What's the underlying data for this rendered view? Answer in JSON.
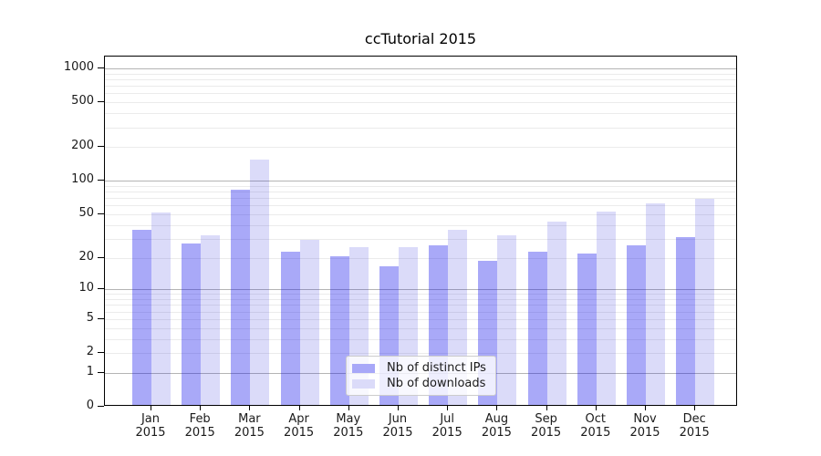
{
  "title": "ccTutorial 2015",
  "colors": {
    "ips_bar_fill": "rgba(8,8,235,0.35)",
    "downloads_bar_fill": "rgba(15,15,215,0.15)",
    "ips_swatch": "#a8a8f8",
    "downloads_swatch": "#dbdbf9",
    "grid_major": "#b4b4b4",
    "grid_minor": "#ebebeb",
    "axis": "#000000",
    "text": "#1a1a1a",
    "legend_border": "#cccccc"
  },
  "legend": {
    "items": [
      {
        "label": "Nb of distinct IPs",
        "swatch": "ips_swatch"
      },
      {
        "label": "Nb of downloads",
        "swatch": "downloads_swatch"
      }
    ],
    "position": "lower center"
  },
  "chart_data": {
    "type": "bar",
    "title": "ccTutorial 2015",
    "categories": [
      "Jan",
      "Feb",
      "Mar",
      "Apr",
      "May",
      "Jun",
      "Jul",
      "Aug",
      "Sep",
      "Oct",
      "Nov",
      "Dec"
    ],
    "year_label": "2015",
    "series": [
      {
        "name": "Nb of distinct IPs",
        "values": [
          35,
          26,
          80,
          22,
          20,
          16,
          25,
          18,
          22,
          21,
          25,
          30
        ]
      },
      {
        "name": "Nb of downloads",
        "values": [
          50,
          31,
          150,
          28,
          24,
          24,
          35,
          31,
          41,
          51,
          60,
          66
        ]
      }
    ],
    "xlabel": "",
    "ylabel": "",
    "y_scale": "log10(1+v) symlog-like, includes 0",
    "ylim": [
      0,
      1273
    ],
    "y_ticks": [
      0,
      1,
      2,
      5,
      10,
      20,
      50,
      100,
      200,
      500,
      1000
    ],
    "y_major_gridlines": [
      1,
      10,
      100,
      1000
    ],
    "y_minor_gridlines": [
      2,
      3,
      4,
      5,
      6,
      7,
      8,
      9,
      20,
      30,
      40,
      50,
      60,
      70,
      80,
      90,
      200,
      300,
      400,
      500,
      600,
      700,
      800,
      900
    ],
    "grid": true,
    "legend_position": "lower center"
  }
}
